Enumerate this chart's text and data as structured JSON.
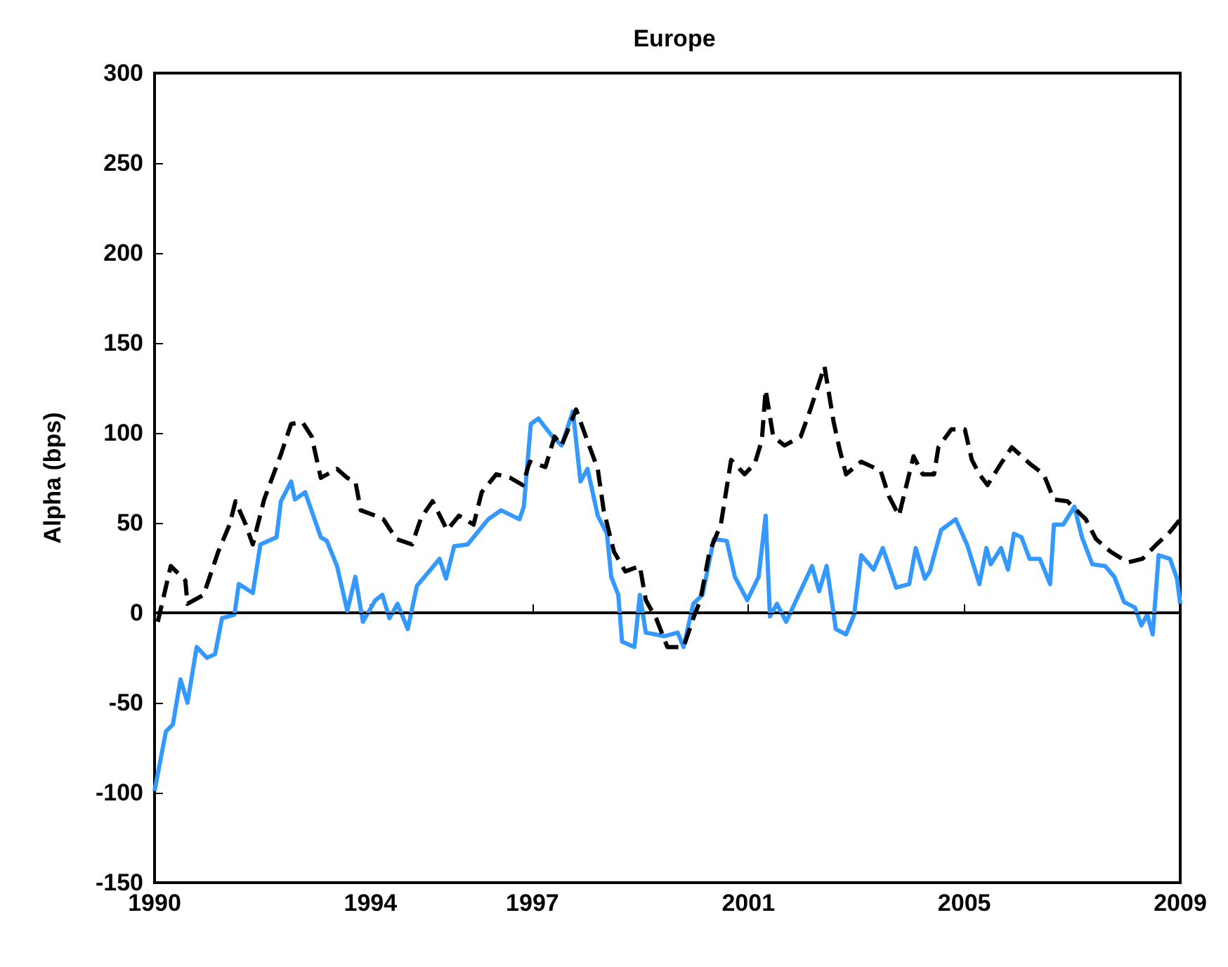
{
  "chart_data": {
    "type": "line",
    "title": "Europe",
    "ylabel": "Alpha (bps)",
    "xlim": [
      1990,
      2009
    ],
    "xticks": [
      1990,
      1994,
      1997,
      2001,
      2005,
      2009
    ],
    "ylim": [
      -150,
      300
    ],
    "yticks": [
      -150,
      -100,
      -50,
      0,
      50,
      100,
      150,
      200,
      250,
      300
    ],
    "grid": false,
    "marker": "none",
    "ref_lines": [
      {
        "axis": "y",
        "value": 0,
        "color": "#000000",
        "line_style": "solid"
      }
    ],
    "series": [
      {
        "color": "#000000",
        "line_style": "dashed",
        "x": [
          1990.06,
          1990.3,
          1990.57,
          1990.61,
          1990.91,
          1991.18,
          1991.39,
          1991.5,
          1991.69,
          1991.82,
          1992.03,
          1992.34,
          1992.53,
          1992.74,
          1992.91,
          1993.08,
          1993.38,
          1993.57,
          1993.72,
          1993.82,
          1994.09,
          1994.24,
          1994.48,
          1994.77,
          1994.94,
          1995.15,
          1995.42,
          1995.64,
          1995.91,
          1996.06,
          1996.33,
          1996.59,
          1996.82,
          1996.95,
          1997.24,
          1997.41,
          1997.54,
          1997.81,
          1998.0,
          1998.21,
          1998.32,
          1998.51,
          1998.72,
          1998.99,
          1999.1,
          1999.29,
          1999.5,
          1999.8,
          1999.98,
          2000.11,
          2000.28,
          2000.49,
          2000.68,
          2000.93,
          2001.12,
          2001.25,
          2001.32,
          2001.46,
          2001.67,
          2001.97,
          2002.16,
          2002.41,
          2002.58,
          2002.69,
          2002.81,
          2003.09,
          2003.45,
          2003.6,
          2003.79,
          2004.06,
          2004.23,
          2004.44,
          2004.52,
          2004.76,
          2005.01,
          2005.14,
          2005.28,
          2005.43,
          2005.68,
          2005.88,
          2006.21,
          2006.47,
          2006.66,
          2006.91,
          2007.25,
          2007.44,
          2007.71,
          2008.03,
          2008.3,
          2008.56,
          2008.81,
          2009.0
        ],
        "values": [
          -5,
          26,
          18,
          5,
          10,
          34,
          49,
          62,
          49,
          38,
          63,
          88,
          105,
          106,
          98,
          75,
          80,
          75,
          73,
          57,
          54,
          52,
          41,
          38,
          53,
          62,
          46,
          54,
          49,
          67,
          77,
          75,
          71,
          84,
          81,
          98,
          93,
          113,
          97,
          80,
          57,
          34,
          23,
          26,
          7,
          -3,
          -19,
          -19,
          -3,
          7,
          34,
          49,
          85,
          77,
          83,
          96,
          124,
          98,
          93,
          98,
          114,
          137,
          106,
          91,
          77,
          84,
          79,
          65,
          54,
          87,
          77,
          77,
          92,
          102,
          102,
          85,
          77,
          71,
          83,
          92,
          83,
          77,
          63,
          62,
          52,
          41,
          34,
          28,
          30,
          38,
          45,
          52
        ]
      },
      {
        "color": "#3399ff",
        "line_style": "solid",
        "x": [
          1990.0,
          1990.21,
          1990.34,
          1990.48,
          1990.61,
          1990.78,
          1990.97,
          1991.12,
          1991.25,
          1991.48,
          1991.56,
          1991.82,
          1991.96,
          1992.26,
          1992.34,
          1992.53,
          1992.6,
          1992.79,
          1993.08,
          1993.19,
          1993.38,
          1993.57,
          1993.72,
          1993.86,
          1994.09,
          1994.22,
          1994.35,
          1994.5,
          1994.69,
          1994.86,
          1995.28,
          1995.4,
          1995.55,
          1995.8,
          1996.18,
          1996.42,
          1996.76,
          1996.84,
          1996.97,
          1997.11,
          1997.37,
          1997.54,
          1997.75,
          1997.89,
          1998.02,
          1998.21,
          1998.38,
          1998.46,
          1998.59,
          1998.66,
          1998.89,
          1998.99,
          1999.1,
          1999.44,
          1999.69,
          1999.8,
          1999.98,
          2000.15,
          2000.36,
          2000.6,
          2000.75,
          2000.98,
          2001.19,
          2001.32,
          2001.4,
          2001.53,
          2001.7,
          2002.18,
          2002.31,
          2002.45,
          2002.62,
          2002.81,
          2002.96,
          2003.09,
          2003.32,
          2003.49,
          2003.74,
          2003.98,
          2004.1,
          2004.27,
          2004.36,
          2004.57,
          2004.84,
          2005.05,
          2005.28,
          2005.41,
          2005.49,
          2005.68,
          2005.81,
          2005.92,
          2006.06,
          2006.21,
          2006.4,
          2006.59,
          2006.66,
          2006.83,
          2007.04,
          2007.18,
          2007.37,
          2007.61,
          2007.78,
          2007.96,
          2008.16,
          2008.28,
          2008.39,
          2008.49,
          2008.6,
          2008.81,
          2008.94,
          2009.0
        ],
        "values": [
          -99,
          -66,
          -62,
          -37,
          -50,
          -19,
          -25,
          -23,
          -3,
          -1,
          16,
          11,
          38,
          42,
          62,
          73,
          63,
          67,
          42,
          40,
          26,
          1,
          20,
          -5,
          7,
          10,
          -3,
          5,
          -9,
          15,
          30,
          19,
          37,
          38,
          52,
          57,
          52,
          59,
          105,
          108,
          98,
          93,
          112,
          73,
          80,
          54,
          44,
          20,
          10,
          -16,
          -19,
          10,
          -11,
          -13,
          -11,
          -19,
          5,
          10,
          41,
          40,
          20,
          7,
          20,
          54,
          -2,
          5,
          -5,
          26,
          12,
          26,
          -9,
          -12,
          -1,
          32,
          24,
          36,
          14,
          16,
          36,
          19,
          23,
          46,
          52,
          38,
          16,
          36,
          27,
          36,
          24,
          44,
          42,
          30,
          30,
          16,
          49,
          49,
          59,
          42,
          27,
          26,
          20,
          6,
          3,
          -7,
          -1,
          -12,
          32,
          30,
          19,
          5
        ]
      }
    ]
  }
}
